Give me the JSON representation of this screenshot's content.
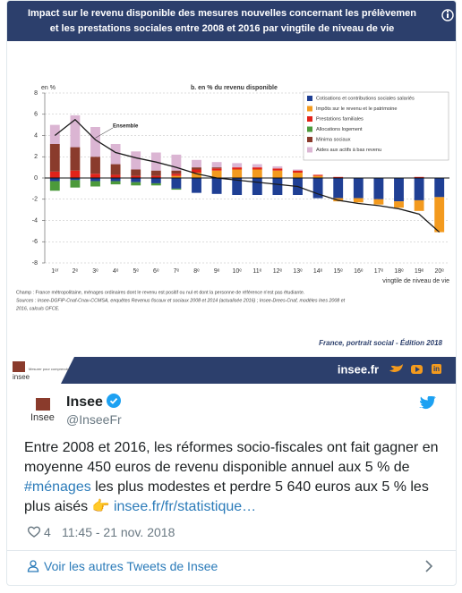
{
  "header": {
    "title_lines": [
      "Impact sur le revenu disponible des mesures nouvelles concernant les prélèvemen",
      "et les prestations sociales entre 2008 et 2016 par vingtile de niveau de vie"
    ]
  },
  "chart_data": {
    "type": "bar",
    "stacked": true,
    "title": "b. en % du revenu disponible",
    "y_label": "en %",
    "x_label": "vingtile de niveau de vie",
    "categories": [
      "1ᵉʳ",
      "2ᵉ",
      "3ᵉ",
      "4ᵉ",
      "5ᵉ",
      "6ᵉ",
      "7ᵉ",
      "8ᵉ",
      "9ᵉ",
      "10ᵉ",
      "11ᵉ",
      "12ᵉ",
      "13ᵉ",
      "14ᵉ",
      "15ᵉ",
      "16ᵉ",
      "17ᵉ",
      "18ᵉ",
      "19ᵉ",
      "20ᵉ"
    ],
    "series": [
      {
        "name": "Cotisations et contributions sociales salariés",
        "color": "#1f3f94",
        "values": [
          -0.3,
          -0.2,
          -0.3,
          -0.3,
          -0.4,
          -0.5,
          -1.0,
          -1.4,
          -1.5,
          -1.6,
          -1.6,
          -1.6,
          -1.6,
          -1.9,
          -1.9,
          -1.9,
          -2.0,
          -2.2,
          -2.1,
          -1.8
        ]
      },
      {
        "name": "Impôts sur le revenu et le patrimoine",
        "color": "#f39a1e",
        "values": [
          0,
          0,
          0,
          0,
          0,
          0,
          0.2,
          0.5,
          0.7,
          0.8,
          0.8,
          0.7,
          0.5,
          0.2,
          -0.3,
          -0.4,
          -0.5,
          -0.6,
          -1.0,
          -3.3
        ]
      },
      {
        "name": "Prestations familiales",
        "color": "#e2231a",
        "values": [
          0.6,
          0.7,
          0.4,
          0.3,
          0.2,
          0.2,
          0.2,
          0.3,
          0.2,
          0.2,
          0.2,
          0.2,
          0.2,
          0.1,
          0.1,
          0,
          0,
          0,
          0.1,
          0
        ]
      },
      {
        "name": "Allocations logement",
        "color": "#4c9a3b",
        "values": [
          -0.9,
          -0.7,
          -0.5,
          -0.3,
          -0.3,
          -0.2,
          -0.1,
          0,
          0,
          0,
          0,
          0,
          0,
          0,
          0,
          0,
          0,
          0,
          0,
          0
        ]
      },
      {
        "name": "Minima sociaux",
        "color": "#8a3b2c",
        "values": [
          2.6,
          2.2,
          1.6,
          1.0,
          0.6,
          0.5,
          0.3,
          0.2,
          0.1,
          0,
          0,
          0,
          0,
          0,
          0,
          0,
          0,
          0,
          0,
          0
        ]
      },
      {
        "name": "Aides aux actifs à bas revenu",
        "color": "#dbb5d3",
        "values": [
          1.8,
          3.0,
          2.8,
          1.9,
          1.7,
          1.7,
          1.5,
          0.7,
          0.5,
          0.4,
          0.3,
          0.2,
          0.1,
          0,
          0,
          0,
          0,
          0,
          0,
          0
        ]
      },
      {
        "name": "Ensemble",
        "type": "line",
        "color": "#1a1a1a",
        "values": [
          4.0,
          5.5,
          3.6,
          2.4,
          1.9,
          1.5,
          1.0,
          0.4,
          0.0,
          -0.2,
          -0.4,
          -0.6,
          -0.8,
          -1.5,
          -2.1,
          -2.4,
          -2.6,
          -2.9,
          -3.4,
          -5.1
        ]
      }
    ],
    "ylim": [
      -8,
      8
    ],
    "yticks": [
      -8,
      -6,
      -4,
      -2,
      0,
      2,
      4,
      6,
      8
    ],
    "grid": true,
    "legend": "upper right",
    "notes": [
      "Champ : France métropolitaine, ménages ordinaires dont le revenu est positif ou nul et dont la personne de référence n'est pas étudiante.",
      "Sources : Insee-DGFiP-Cnaf-Cnav-CCMSA, enquêtes Revenus fiscaux et sociaux 2008 et 2014 (actualisée 2016) ; Insee-Drees-Cnaf, modèles Ines 2008 et",
      "2016, calculs OFCE."
    ],
    "edition": "France, portrait social - Édition 2018"
  },
  "banner": {
    "site": "insee.fr",
    "logo": "insee",
    "tagline": "Mesurer pour comprendre"
  },
  "tweet": {
    "name": "Insee",
    "avatar_label": "Insee",
    "handle": "@InseeFr",
    "text_start": "Entre 2008 et 2016, les réformes socio-fiscales ont fait gagner en moyenne 450 euros de revenu disponible annuel aux 5 % de ",
    "hashtag": "#ménages",
    "text_middle": " les plus modestes et perdre 5 640 euros aux 5 % les plus aisés 👉 ",
    "link": "insee.fr/fr/statistique…",
    "likes": 4,
    "time": "11:45 - 21 nov. 2018",
    "more": "Voir les autres Tweets de Insee"
  }
}
